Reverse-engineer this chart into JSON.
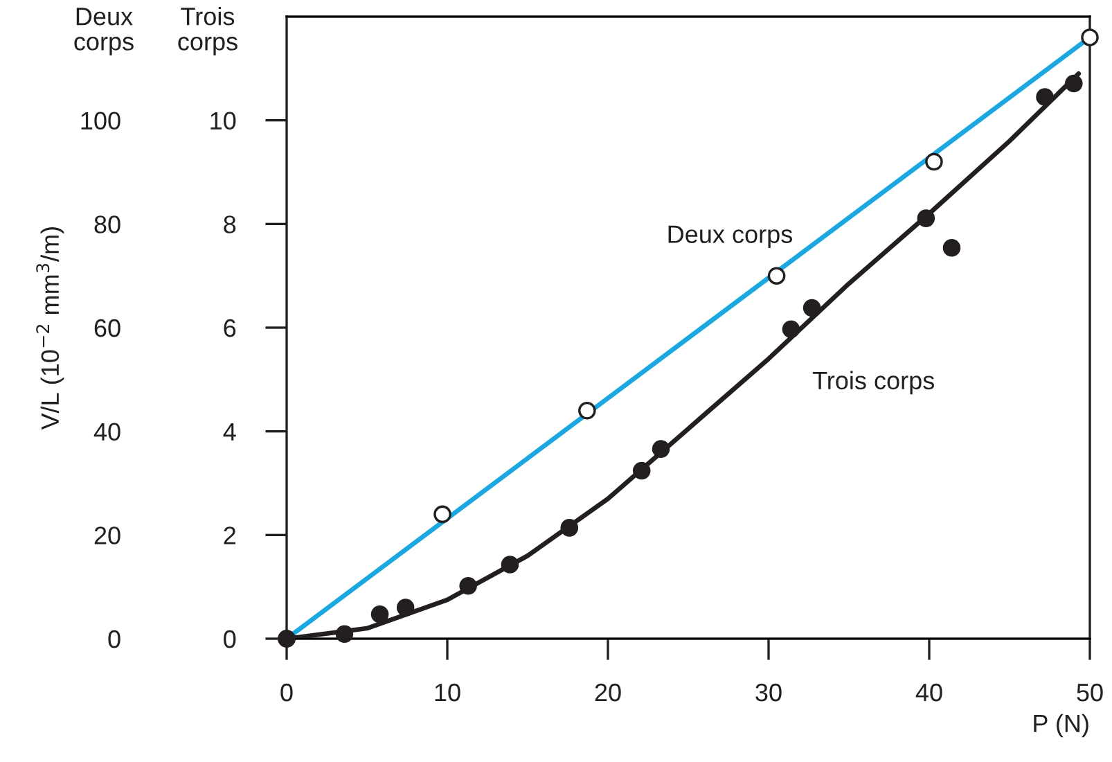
{
  "chart_data": {
    "type": "scatter",
    "xlabel": "P (N)",
    "ylabel": "V/L (10$^{−2}$ mm$^{3}$/m)",
    "annotations": [
      "Deux\ncorps",
      "Trois\ncorps"
    ],
    "xlim": [
      0,
      50
    ],
    "xticks": [
      0,
      10,
      20,
      30,
      40,
      50
    ],
    "ylim": [
      0,
      120
    ],
    "yticks": [
      0,
      20,
      40,
      60,
      80,
      100
    ],
    "y2lim": [
      0,
      12
    ],
    "y2ticks": [
      0,
      2,
      4,
      6,
      8,
      10
    ],
    "grid": false,
    "legend": false,
    "series": [
      {
        "type": "line",
        "name": "Deux corps",
        "color": "#1ba8e0",
        "x": [
          0,
          50
        ],
        "values": [
          0,
          116
        ]
      },
      {
        "type": "scatter",
        "marker": "circle",
        "color": "#ffffff",
        "x": [
          0,
          9.7,
          18.7,
          30.5,
          40.3,
          50
        ],
        "values": [
          0,
          24,
          44,
          70,
          92,
          116
        ]
      },
      {
        "type": "line",
        "name": "Trois corps",
        "color": "#231f20",
        "axis": "y2",
        "x": [
          0,
          5,
          10,
          15,
          20,
          25,
          30,
          35,
          40,
          45,
          49.3
        ],
        "values": [
          0,
          0.2,
          0.75,
          1.6,
          2.7,
          4.05,
          5.4,
          6.85,
          8.2,
          9.6,
          10.9
        ]
      },
      {
        "type": "scatter",
        "marker": "circle",
        "color": "#231f20",
        "axis": "y2",
        "x": [
          0,
          3.6,
          5.8,
          7.4,
          11.3,
          13.9,
          17.6,
          22.1,
          23.3,
          31.4,
          32.7,
          39.8,
          41.4,
          47.2,
          49.0
        ],
        "values": [
          0,
          0.09,
          0.47,
          0.6,
          1.02,
          1.43,
          2.14,
          3.24,
          3.66,
          5.97,
          6.38,
          8.11,
          7.54,
          10.45,
          10.71
        ]
      }
    ]
  }
}
